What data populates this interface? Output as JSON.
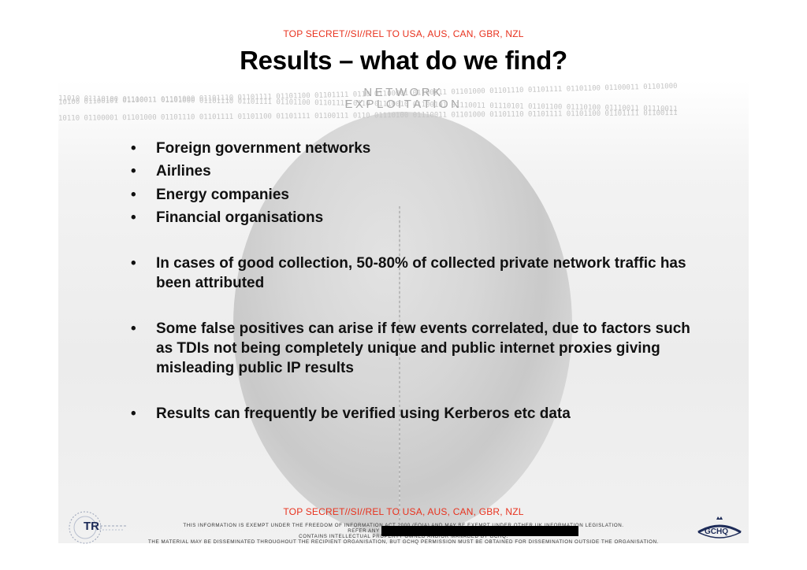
{
  "classification_top": "TOP SECRET//SI//REL TO USA, AUS, CAN, GBR, NZL",
  "title": "Results – what do we find?",
  "banner": {
    "line1": "NETWORK",
    "line2": "EXPLOITATION"
  },
  "binary_rows": [
    "10100 01100101 01100011 01101000 01101110 01101111 01101100 01101111 0110 01100001 01100011 01101000 01101110 01101111 01101100 01100011 01101000",
    "11010 01110100 01110011 01101000 01101110 01101111 01101100 01101111 0110 01110010 01100101 01110011 01110101 01101100 01110100 01110011 01110011",
    "10110 01100001 01101000 01101110 01101111 01101100 01101111 01100111 0110 01110100 01110011 01101000 01101110 01101111 01101100 01101111 01100111"
  ],
  "bullets": [
    {
      "marker": "•",
      "text": "Foreign government networks"
    },
    {
      "marker": "•",
      "text": "Airlines"
    },
    {
      "marker": "•",
      "text": "Energy companies"
    },
    {
      "marker": "•",
      "text": "Financial organisations"
    },
    {
      "marker": "•",
      "text": "In cases of good collection, 50-80% of collected private network traffic has been attributed"
    },
    {
      "marker": "•",
      "text": "Some false positives can arise if few events correlated, due to factors such as TDIs not being completely unique and public internet proxies giving misleading public IP results"
    },
    {
      "marker": "•",
      "text": "Results can frequently be verified using Kerberos etc data"
    }
  ],
  "classification_bottom": "TOP SECRET//SI//REL TO USA, AUS, CAN, GBR, NZL",
  "legal": {
    "line1": "This information is exempt under the Freedom of Information Act 2000 (FOIA) and may be exempt under other UK information legislation.",
    "line2": "Refer any FOIA queries to GCHQ on",
    "line3": "Contains Intellectual Property owned and/or managed by GCHQ.",
    "line4": "The material may be disseminated throughout the recipient organisation, but GCHQ permission must be obtained for dissemination outside the organisation."
  },
  "logos": {
    "tr": "TR",
    "gchq": "GCHQ"
  },
  "colors": {
    "classification": "#e8321e",
    "logo_blue": "#1d2b58"
  }
}
